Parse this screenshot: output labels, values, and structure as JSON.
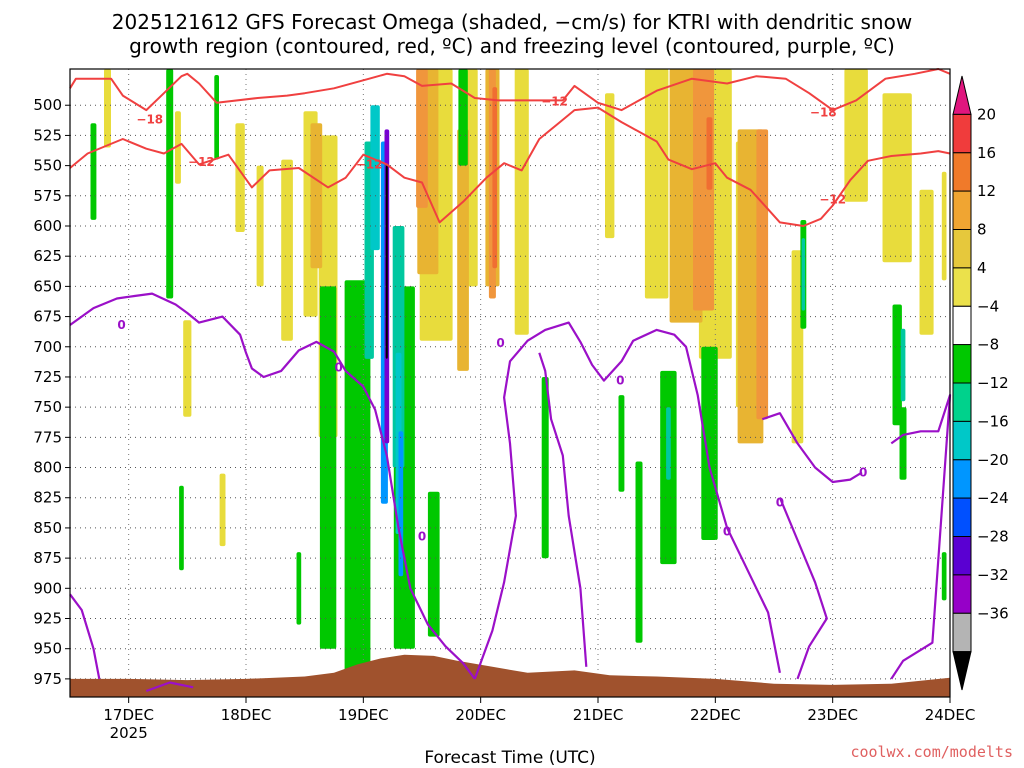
{
  "chart_data": {
    "type": "heatmap",
    "title_line1": "2025121612 GFS Forecast Omega (shaded, −cm/s) for KTRI with dendritic snow",
    "title_line2": "growth region (contoured, red, ºC) and freezing level (contoured, purple, ºC)",
    "xlabel": "Forecast Time (UTC)",
    "credit": "coolwx.com/modelts",
    "x_range_days": [
      16.5,
      24.0
    ],
    "x_ticks": [
      {
        "day": 17,
        "label": "17DEC",
        "sub": "2025"
      },
      {
        "day": 18,
        "label": "18DEC",
        "sub": ""
      },
      {
        "day": 19,
        "label": "19DEC",
        "sub": ""
      },
      {
        "day": 20,
        "label": "20DEC",
        "sub": ""
      },
      {
        "day": 21,
        "label": "21DEC",
        "sub": ""
      },
      {
        "day": 22,
        "label": "22DEC",
        "sub": ""
      },
      {
        "day": 23,
        "label": "23DEC",
        "sub": ""
      },
      {
        "day": 24,
        "label": "24DEC",
        "sub": ""
      }
    ],
    "y_range_hpa": [
      470,
      990
    ],
    "y_ticks": [
      "500",
      "525",
      "550",
      "575",
      "600",
      "625",
      "650",
      "675",
      "700",
      "725",
      "750",
      "775",
      "800",
      "825",
      "850",
      "875",
      "900",
      "925",
      "950",
      "975"
    ],
    "colorbar": {
      "labels": [
        "20",
        "16",
        "12",
        "8",
        "4",
        "−4",
        "−8",
        "−12",
        "−16",
        "−20",
        "−24",
        "−28",
        "−32",
        "−36"
      ],
      "colors": [
        "#e0167e",
        "#f03c3c",
        "#f07a2a",
        "#f0a532",
        "#e6c83c",
        "#ebe14b",
        "#ffffff",
        "#00c800",
        "#00d28c",
        "#00c8c8",
        "#0096ff",
        "#0050ff",
        "#5a00d2",
        "#9600c8",
        "#b4b4b4",
        "#000000"
      ]
    },
    "shading_colors": {
      "yellow": "#e8dc3c",
      "gold": "#e8b432",
      "orange": "#f0963c",
      "red_orange": "#f06e32",
      "green": "#00c800",
      "teal": "#00c8a0",
      "cyan": "#00c8c8",
      "blue": "#0096ff",
      "purple": "#7800d2",
      "violet": "#9600c8",
      "black": "#000000",
      "terrain": "#a0522d"
    },
    "contour_colors": {
      "dgz": "#f04040",
      "freezing": "#9b10c8"
    },
    "contour_labels": [
      {
        "text": "−18",
        "day": 17.18,
        "p": 512
      },
      {
        "text": "−12",
        "day": 17.62,
        "p": 547
      },
      {
        "text": "−12",
        "day": 19.05,
        "p": 549
      },
      {
        "text": "−12",
        "day": 20.63,
        "p": 497
      },
      {
        "text": "−18",
        "day": 22.92,
        "p": 506
      },
      {
        "text": "−12",
        "day": 23.0,
        "p": 578
      },
      {
        "text": "0",
        "day": 16.94,
        "p": 682
      },
      {
        "text": "0",
        "day": 18.79,
        "p": 717
      },
      {
        "text": "0",
        "day": 19.5,
        "p": 857
      },
      {
        "text": "0",
        "day": 20.17,
        "p": 697
      },
      {
        "text": "0",
        "day": 21.19,
        "p": 728
      },
      {
        "text": "0",
        "day": 22.1,
        "p": 853
      },
      {
        "text": "0",
        "day": 22.55,
        "p": 829
      },
      {
        "text": "0",
        "day": 23.26,
        "p": 804
      }
    ],
    "dgz_upper": [
      [
        16.5,
        486
      ],
      [
        16.55,
        478
      ],
      [
        16.85,
        478
      ],
      [
        16.95,
        492
      ],
      [
        17.15,
        504
      ],
      [
        17.3,
        490
      ],
      [
        17.45,
        476
      ],
      [
        17.5,
        474
      ],
      [
        17.6,
        482
      ],
      [
        17.75,
        498
      ],
      [
        18.1,
        494
      ],
      [
        18.35,
        492
      ],
      [
        18.5,
        490
      ],
      [
        18.75,
        486
      ],
      [
        19.05,
        478
      ],
      [
        19.2,
        474
      ],
      [
        19.35,
        476
      ],
      [
        19.5,
        484
      ],
      [
        19.75,
        482
      ],
      [
        19.95,
        494
      ],
      [
        20.15,
        496
      ],
      [
        20.5,
        496
      ],
      [
        20.7,
        496
      ],
      [
        20.8,
        484
      ],
      [
        21.0,
        498
      ],
      [
        21.2,
        504
      ],
      [
        21.35,
        496
      ],
      [
        21.5,
        488
      ],
      [
        21.8,
        478
      ],
      [
        22.1,
        482
      ],
      [
        22.35,
        476
      ],
      [
        22.6,
        478
      ],
      [
        22.8,
        490
      ],
      [
        23.0,
        504
      ],
      [
        23.2,
        496
      ],
      [
        23.45,
        478
      ],
      [
        23.7,
        474
      ],
      [
        23.9,
        468
      ],
      [
        24.0,
        474
      ]
    ],
    "dgz_lower": [
      [
        16.5,
        552
      ],
      [
        16.65,
        540
      ],
      [
        16.95,
        528
      ],
      [
        17.15,
        536
      ],
      [
        17.3,
        540
      ],
      [
        17.45,
        532
      ],
      [
        17.6,
        549
      ],
      [
        17.85,
        541
      ],
      [
        18.05,
        568
      ],
      [
        18.2,
        554
      ],
      [
        18.45,
        552
      ],
      [
        18.7,
        568
      ],
      [
        18.85,
        560
      ],
      [
        19.0,
        541
      ],
      [
        19.2,
        549
      ],
      [
        19.35,
        560
      ],
      [
        19.5,
        564
      ],
      [
        19.65,
        597
      ],
      [
        19.85,
        580
      ],
      [
        20.05,
        560
      ],
      [
        20.2,
        548
      ],
      [
        20.35,
        554
      ],
      [
        20.5,
        528
      ],
      [
        20.65,
        516
      ],
      [
        20.8,
        504
      ],
      [
        21.0,
        502
      ],
      [
        21.2,
        514
      ],
      [
        21.35,
        522
      ],
      [
        21.5,
        530
      ],
      [
        21.6,
        545
      ],
      [
        21.8,
        553
      ],
      [
        22.0,
        548
      ],
      [
        22.1,
        560
      ],
      [
        22.3,
        570
      ],
      [
        22.55,
        597
      ],
      [
        22.75,
        600
      ],
      [
        22.9,
        594
      ],
      [
        23.0,
        583
      ],
      [
        23.15,
        562
      ],
      [
        23.3,
        546
      ],
      [
        23.5,
        542
      ],
      [
        23.75,
        540
      ],
      [
        23.9,
        538
      ],
      [
        24.0,
        540
      ]
    ],
    "freezing_segments": [
      [
        [
          16.5,
          682
        ],
        [
          16.7,
          668
        ],
        [
          16.9,
          660
        ],
        [
          17.05,
          658
        ],
        [
          17.2,
          656
        ],
        [
          17.4,
          665
        ],
        [
          17.5,
          672
        ],
        [
          17.6,
          680
        ],
        [
          17.8,
          675
        ],
        [
          17.95,
          690
        ],
        [
          18.0,
          705
        ],
        [
          18.05,
          718
        ],
        [
          18.15,
          725
        ],
        [
          18.3,
          720
        ],
        [
          18.45,
          703
        ],
        [
          18.6,
          696
        ],
        [
          18.75,
          704
        ],
        [
          18.85,
          720
        ],
        [
          19.0,
          733
        ],
        [
          19.1,
          752
        ],
        [
          19.2,
          790
        ],
        [
          19.3,
          850
        ],
        [
          19.4,
          900
        ],
        [
          19.55,
          930
        ],
        [
          19.7,
          948
        ],
        [
          19.85,
          962
        ],
        [
          19.95,
          975
        ]
      ],
      [
        [
          19.95,
          975
        ],
        [
          20.1,
          935
        ],
        [
          20.2,
          895
        ],
        [
          20.3,
          840
        ],
        [
          20.25,
          780
        ],
        [
          20.2,
          742
        ],
        [
          20.25,
          712
        ],
        [
          20.4,
          695
        ],
        [
          20.55,
          686
        ],
        [
          20.75,
          680
        ],
        [
          20.85,
          696
        ],
        [
          20.95,
          715
        ],
        [
          21.05,
          728
        ],
        [
          21.2,
          712
        ],
        [
          21.3,
          695
        ],
        [
          21.5,
          686
        ],
        [
          21.65,
          690
        ],
        [
          21.75,
          700
        ],
        [
          21.85,
          740
        ],
        [
          21.95,
          800
        ],
        [
          22.1,
          850
        ],
        [
          22.3,
          890
        ],
        [
          22.45,
          920
        ],
        [
          22.55,
          970
        ]
      ],
      [
        [
          20.9,
          965
        ],
        [
          20.85,
          900
        ],
        [
          20.75,
          840
        ],
        [
          20.7,
          790
        ],
        [
          20.6,
          760
        ],
        [
          20.55,
          720
        ],
        [
          20.5,
          705
        ]
      ],
      [
        [
          22.4,
          760
        ],
        [
          22.55,
          755
        ],
        [
          22.7,
          780
        ],
        [
          22.85,
          800
        ],
        [
          23.0,
          812
        ],
        [
          23.15,
          810
        ],
        [
          23.25,
          804
        ]
      ],
      [
        [
          22.55,
          825
        ],
        [
          22.7,
          860
        ],
        [
          22.85,
          895
        ],
        [
          22.95,
          925
        ],
        [
          22.8,
          948
        ],
        [
          22.7,
          975
        ]
      ],
      [
        [
          23.5,
          975
        ],
        [
          23.6,
          960
        ],
        [
          23.85,
          945
        ],
        [
          24.0,
          740
        ],
        [
          23.9,
          770
        ],
        [
          23.75,
          770
        ],
        [
          23.6,
          773
        ],
        [
          23.5,
          780
        ]
      ],
      [
        [
          16.5,
          905
        ],
        [
          16.6,
          918
        ],
        [
          16.7,
          950
        ],
        [
          16.75,
          975
        ]
      ],
      [
        [
          17.15,
          985
        ],
        [
          17.35,
          978
        ],
        [
          17.55,
          982
        ]
      ]
    ],
    "shading_blobs": [
      {
        "c": "yellow",
        "day": 16.82,
        "p": 495,
        "w": 0.06,
        "h": 80
      },
      {
        "c": "yellow",
        "day": 17.42,
        "p": 535,
        "w": 0.05,
        "h": 60
      },
      {
        "c": "yellow",
        "day": 17.5,
        "p": 718,
        "w": 0.07,
        "h": 80
      },
      {
        "c": "yellow",
        "day": 18.35,
        "p": 620,
        "w": 0.1,
        "h": 150
      },
      {
        "c": "yellow",
        "day": 18.55,
        "p": 590,
        "w": 0.12,
        "h": 170
      },
      {
        "c": "yellow",
        "day": 18.7,
        "p": 650,
        "w": 0.16,
        "h": 250
      },
      {
        "c": "yellow",
        "day": 19.62,
        "p": 570,
        "w": 0.28,
        "h": 250
      },
      {
        "c": "yellow",
        "day": 19.9,
        "p": 540,
        "w": 0.15,
        "h": 220
      },
      {
        "c": "yellow",
        "day": 20.35,
        "p": 560,
        "w": 0.12,
        "h": 260
      },
      {
        "c": "yellow",
        "day": 17.95,
        "p": 560,
        "w": 0.08,
        "h": 90
      },
      {
        "c": "yellow",
        "day": 18.12,
        "p": 600,
        "w": 0.06,
        "h": 100
      },
      {
        "c": "yellow",
        "day": 17.8,
        "p": 835,
        "w": 0.05,
        "h": 60
      },
      {
        "c": "yellow",
        "day": 21.1,
        "p": 550,
        "w": 0.08,
        "h": 120
      },
      {
        "c": "yellow",
        "day": 21.5,
        "p": 560,
        "w": 0.2,
        "h": 200
      },
      {
        "c": "yellow",
        "day": 22.0,
        "p": 580,
        "w": 0.28,
        "h": 260
      },
      {
        "c": "yellow",
        "day": 22.3,
        "p": 640,
        "w": 0.25,
        "h": 220
      },
      {
        "c": "yellow",
        "day": 23.2,
        "p": 520,
        "w": 0.2,
        "h": 120
      },
      {
        "c": "yellow",
        "day": 23.55,
        "p": 560,
        "w": 0.25,
        "h": 140
      },
      {
        "c": "yellow",
        "day": 23.8,
        "p": 630,
        "w": 0.12,
        "h": 120
      },
      {
        "c": "yellow",
        "day": 23.95,
        "p": 600,
        "w": 0.04,
        "h": 90
      },
      {
        "c": "yellow",
        "day": 22.7,
        "p": 700,
        "w": 0.1,
        "h": 160
      },
      {
        "c": "gold",
        "day": 18.6,
        "p": 575,
        "w": 0.1,
        "h": 120
      },
      {
        "c": "gold",
        "day": 19.55,
        "p": 540,
        "w": 0.18,
        "h": 200
      },
      {
        "c": "gold",
        "day": 20.1,
        "p": 560,
        "w": 0.12,
        "h": 180
      },
      {
        "c": "gold",
        "day": 19.85,
        "p": 620,
        "w": 0.1,
        "h": 200
      },
      {
        "c": "gold",
        "day": 21.75,
        "p": 560,
        "w": 0.28,
        "h": 240
      },
      {
        "c": "gold",
        "day": 22.3,
        "p": 650,
        "w": 0.22,
        "h": 260
      },
      {
        "c": "orange",
        "day": 19.5,
        "p": 520,
        "w": 0.1,
        "h": 130
      },
      {
        "c": "orange",
        "day": 20.1,
        "p": 560,
        "w": 0.06,
        "h": 200
      },
      {
        "c": "orange",
        "day": 21.9,
        "p": 560,
        "w": 0.18,
        "h": 220
      },
      {
        "c": "orange",
        "day": 22.4,
        "p": 640,
        "w": 0.1,
        "h": 240
      },
      {
        "c": "red_orange",
        "day": 20.12,
        "p": 560,
        "w": 0.04,
        "h": 150
      },
      {
        "c": "red_orange",
        "day": 21.95,
        "p": 540,
        "w": 0.05,
        "h": 60
      },
      {
        "c": "green",
        "day": 16.7,
        "p": 555,
        "w": 0.05,
        "h": 80
      },
      {
        "c": "green",
        "day": 17.35,
        "p": 560,
        "w": 0.06,
        "h": 200
      },
      {
        "c": "green",
        "day": 17.75,
        "p": 510,
        "w": 0.04,
        "h": 70
      },
      {
        "c": "green",
        "day": 18.7,
        "p": 800,
        "w": 0.14,
        "h": 300
      },
      {
        "c": "green",
        "day": 18.95,
        "p": 810,
        "w": 0.22,
        "h": 330
      },
      {
        "c": "green",
        "day": 19.35,
        "p": 800,
        "w": 0.18,
        "h": 300
      },
      {
        "c": "green",
        "day": 19.6,
        "p": 880,
        "w": 0.1,
        "h": 120
      },
      {
        "c": "green",
        "day": 19.85,
        "p": 510,
        "w": 0.08,
        "h": 80
      },
      {
        "c": "green",
        "day": 20.55,
        "p": 800,
        "w": 0.06,
        "h": 150
      },
      {
        "c": "green",
        "day": 21.2,
        "p": 780,
        "w": 0.05,
        "h": 80
      },
      {
        "c": "green",
        "day": 21.35,
        "p": 870,
        "w": 0.06,
        "h": 150
      },
      {
        "c": "green",
        "day": 21.6,
        "p": 800,
        "w": 0.14,
        "h": 160
      },
      {
        "c": "green",
        "day": 21.95,
        "p": 780,
        "w": 0.14,
        "h": 160
      },
      {
        "c": "green",
        "day": 22.75,
        "p": 640,
        "w": 0.05,
        "h": 90
      },
      {
        "c": "green",
        "day": 23.55,
        "p": 715,
        "w": 0.08,
        "h": 100
      },
      {
        "c": "green",
        "day": 23.6,
        "p": 780,
        "w": 0.06,
        "h": 60
      },
      {
        "c": "green",
        "day": 23.95,
        "p": 890,
        "w": 0.04,
        "h": 40
      },
      {
        "c": "green",
        "day": 18.45,
        "p": 900,
        "w": 0.04,
        "h": 60
      },
      {
        "c": "green",
        "day": 17.45,
        "p": 850,
        "w": 0.04,
        "h": 70
      },
      {
        "c": "teal",
        "day": 19.05,
        "p": 620,
        "w": 0.08,
        "h": 180
      },
      {
        "c": "teal",
        "day": 19.3,
        "p": 700,
        "w": 0.1,
        "h": 200
      },
      {
        "c": "teal",
        "day": 21.6,
        "p": 780,
        "w": 0.04,
        "h": 60
      },
      {
        "c": "teal",
        "day": 22.75,
        "p": 640,
        "w": 0.03,
        "h": 60
      },
      {
        "c": "teal",
        "day": 23.6,
        "p": 715,
        "w": 0.04,
        "h": 60
      },
      {
        "c": "cyan",
        "day": 19.1,
        "p": 560,
        "w": 0.08,
        "h": 120
      },
      {
        "c": "cyan",
        "day": 19.3,
        "p": 780,
        "w": 0.05,
        "h": 150
      },
      {
        "c": "blue",
        "day": 19.18,
        "p": 680,
        "w": 0.06,
        "h": 300
      },
      {
        "c": "blue",
        "day": 19.32,
        "p": 830,
        "w": 0.04,
        "h": 120
      },
      {
        "c": "purple",
        "day": 19.2,
        "p": 650,
        "w": 0.04,
        "h": 260
      },
      {
        "c": "black",
        "day": 19.2,
        "p": 630,
        "w": 0.018,
        "h": 160
      }
    ],
    "terrain_p": [
      [
        16.5,
        975
      ],
      [
        17.0,
        975
      ],
      [
        17.5,
        976
      ],
      [
        18.0,
        975
      ],
      [
        18.5,
        973
      ],
      [
        18.75,
        970
      ],
      [
        18.95,
        963
      ],
      [
        19.15,
        958
      ],
      [
        19.35,
        955
      ],
      [
        19.6,
        956
      ],
      [
        19.8,
        960
      ],
      [
        20.1,
        965
      ],
      [
        20.4,
        970
      ],
      [
        20.8,
        968
      ],
      [
        21.1,
        972
      ],
      [
        21.5,
        973
      ],
      [
        22.0,
        975
      ],
      [
        22.5,
        979
      ],
      [
        23.0,
        980
      ],
      [
        23.5,
        979
      ],
      [
        24.0,
        974
      ]
    ]
  }
}
